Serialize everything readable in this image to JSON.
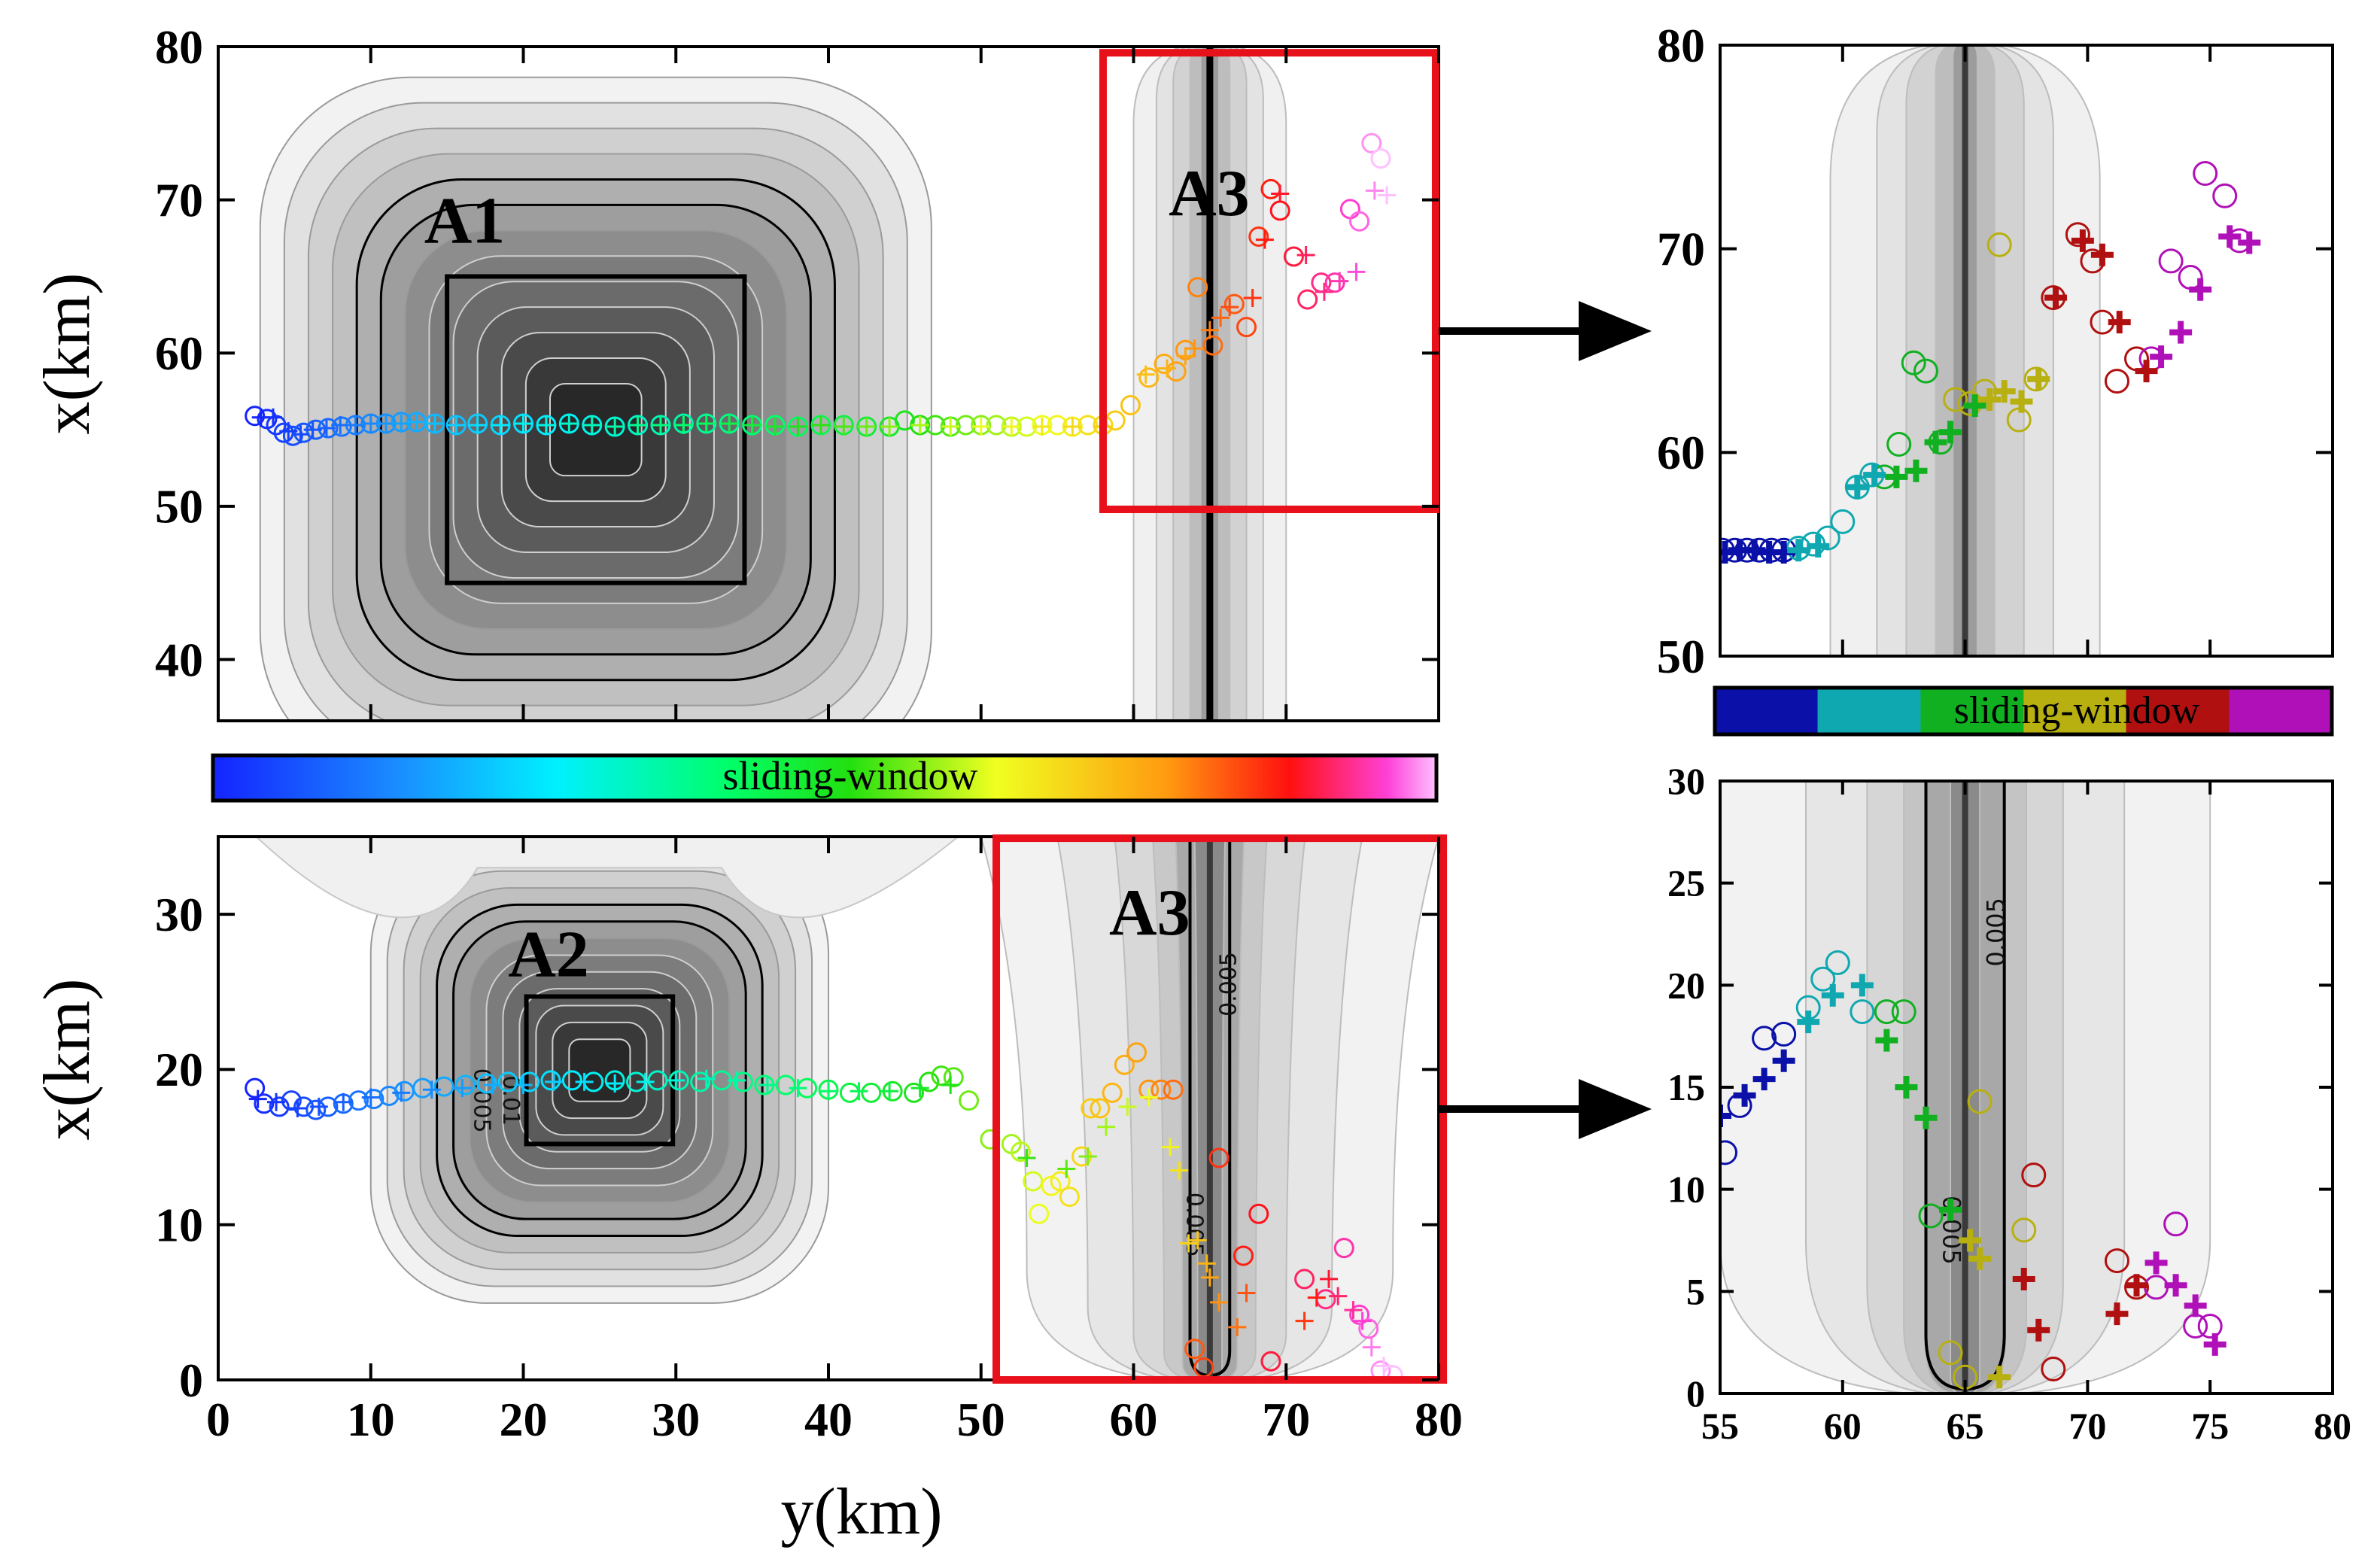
{
  "figure": {
    "colorbar_main_label": "sliding-window",
    "colorbar_side_label": "sliding-window",
    "ylabel_top": "x(km)",
    "ylabel_bottom": "x(km)",
    "xlabel_bottom": "y(km)",
    "colors": {
      "frame": "#000000",
      "zoom_box": "#e8101a",
      "fault": "#000000",
      "contour_light": "#f1f1f1",
      "contour_dark": "#222222"
    }
  },
  "chart_data": [
    {
      "id": "top-left",
      "type": "scatter",
      "title": "",
      "xlabel": "",
      "ylabel": "x(km)",
      "xlim": [
        0,
        80
      ],
      "ylim": [
        36,
        80
      ],
      "x_ticks": [],
      "y_ticks": [
        40,
        50,
        60,
        70,
        80
      ],
      "annotations": [
        {
          "text": "A1",
          "x": 13.5,
          "y": 67.2
        },
        {
          "text": "A3",
          "x": 62.3,
          "y": 69.0
        }
      ],
      "source_boxes": [
        {
          "name": "A1",
          "x0": 15,
          "x1": 34.5,
          "y0": 45,
          "y1": 65
        }
      ],
      "fault_line": {
        "y": 65,
        "from": 36,
        "to": 80
      },
      "zoom_box": {
        "x0": 58,
        "x1": 79.8,
        "y0": 49.8,
        "y1": 79.6
      },
      "series": [
        {
          "marker": "circle",
          "colorscale": "rainbow",
          "x": [
            2.4,
            3.2,
            3.8,
            4.3,
            4.9,
            5.6,
            6.4,
            7.2,
            8.1,
            9.0,
            10.0,
            11.0,
            12.0,
            13.0,
            14.2,
            15.6,
            17.0,
            18.5,
            20.0,
            21.5,
            23.0,
            24.5,
            26.0,
            27.5,
            29.0,
            30.5,
            32.0,
            33.5,
            35.0,
            36.5,
            38.0,
            39.5,
            41.0,
            42.5,
            44.0,
            45.0,
            46.0,
            47.0,
            48.0,
            49.0,
            50.0,
            51.0,
            52.0,
            53.0,
            54.0,
            55.0,
            56.0,
            57.0,
            58.0,
            58.8,
            59.8,
            61.0,
            62.0,
            62.8,
            63.4,
            64.2,
            65.2,
            66.6,
            67.4,
            68.2,
            69.0,
            69.6,
            70.5,
            71.4,
            72.3,
            73.2,
            74.2,
            74.8,
            75.6,
            76.2
          ],
          "y": [
            55.9,
            55.7,
            55.3,
            54.8,
            54.6,
            54.8,
            55.0,
            55.1,
            55.2,
            55.3,
            55.4,
            55.4,
            55.5,
            55.5,
            55.4,
            55.3,
            55.4,
            55.3,
            55.4,
            55.3,
            55.4,
            55.3,
            55.2,
            55.3,
            55.3,
            55.4,
            55.4,
            55.4,
            55.3,
            55.3,
            55.2,
            55.3,
            55.3,
            55.2,
            55.2,
            55.6,
            55.3,
            55.3,
            55.2,
            55.3,
            55.3,
            55.3,
            55.2,
            55.2,
            55.3,
            55.3,
            55.2,
            55.3,
            55.3,
            55.6,
            56.6,
            58.4,
            59.3,
            58.8,
            60.2,
            64.3,
            60.5,
            63.2,
            61.7,
            67.6,
            70.7,
            69.3,
            66.3,
            63.5,
            64.6,
            64.6,
            69.4,
            68.6,
            73.7,
            72.7
          ]
        },
        {
          "marker": "cross",
          "colorscale": "rainbow",
          "x": [
            2.8,
            3.6,
            4.6,
            5.4,
            6.2,
            7.1,
            8.0,
            9.0,
            10.0,
            11.0,
            12.0,
            13.0,
            14.2,
            15.6,
            17.0,
            18.5,
            20.0,
            21.5,
            23.0,
            24.5,
            26.0,
            27.5,
            29.0,
            30.5,
            32.0,
            33.5,
            35.0,
            36.5,
            38.0,
            39.5,
            41.0,
            42.5,
            44.0,
            46.0,
            48.0,
            50.0,
            52.0,
            54.0,
            56.0,
            58.0,
            60.8,
            62.2,
            63.4,
            64.0,
            65.0,
            65.7,
            66.3,
            67.8,
            68.6,
            69.6,
            71.3,
            72.5,
            73.5,
            74.6,
            75.8,
            76.6
          ],
          "y": [
            55.8,
            55.8,
            54.9,
            54.7,
            55.0,
            55.1,
            55.3,
            55.3,
            55.4,
            55.4,
            55.4,
            55.5,
            55.4,
            55.3,
            55.3,
            55.3,
            55.4,
            55.3,
            55.4,
            55.3,
            55.2,
            55.3,
            55.3,
            55.3,
            55.4,
            55.4,
            55.3,
            55.2,
            55.2,
            55.3,
            55.2,
            55.2,
            55.2,
            55.3,
            55.2,
            55.2,
            55.2,
            55.2,
            55.2,
            55.2,
            58.6,
            59.0,
            59.8,
            60.3,
            61.5,
            62.3,
            63.0,
            63.6,
            67.4,
            70.4,
            66.4,
            64.0,
            64.7,
            65.3,
            70.6,
            70.3
          ]
        }
      ]
    },
    {
      "id": "bottom-left",
      "type": "scatter",
      "title": "",
      "xlabel": "y(km)",
      "ylabel": "x(km)",
      "xlim": [
        0,
        80
      ],
      "ylim": [
        0,
        35
      ],
      "x_ticks": [
        0,
        10,
        20,
        30,
        40,
        50,
        60,
        70,
        80
      ],
      "y_ticks": [
        0,
        10,
        20,
        30
      ],
      "annotations": [
        {
          "text": "A2",
          "x": 19.0,
          "y": 26.0
        },
        {
          "text": "A3",
          "x": 58.4,
          "y": 28.7
        }
      ],
      "contour_labels": [
        {
          "text": "0.005",
          "x": 16.8,
          "y": 18.0,
          "angle": 90
        },
        {
          "text": "0.01",
          "x": 18.7,
          "y": 18.0,
          "angle": 90
        },
        {
          "text": "0.005",
          "x": 66.7,
          "y": 25.5,
          "angle": -90
        },
        {
          "text": "0.005",
          "x": 63.5,
          "y": 10.0,
          "angle": 90
        }
      ],
      "source_boxes": [
        {
          "name": "A2",
          "x0": 20.2,
          "x1": 29.8,
          "y0": 15.2,
          "y1": 24.7
        }
      ],
      "fault_line": {
        "y": 65,
        "from": 0,
        "to": 35
      },
      "zoom_box": {
        "x0": 51,
        "x1": 80.3,
        "y0": 0,
        "y1": 34.9
      },
      "series": [
        {
          "marker": "circle",
          "colorscale": "rainbow",
          "x": [
            2.4,
            3.0,
            4.0,
            4.8,
            5.6,
            6.4,
            7.2,
            8.2,
            9.2,
            10.2,
            11.2,
            12.2,
            13.4,
            14.8,
            16.2,
            17.6,
            19.0,
            20.4,
            21.8,
            23.2,
            24.6,
            26.0,
            27.4,
            28.8,
            30.2,
            31.6,
            33.0,
            34.4,
            35.8,
            37.2,
            38.6,
            40.0,
            41.4,
            42.8,
            44.2,
            45.6,
            46.6,
            47.4,
            48.2,
            49.2,
            50.6,
            52.0,
            52.6,
            53.4,
            53.8,
            54.6,
            55.2,
            55.8,
            56.6,
            57.2,
            57.8,
            58.6,
            59.4,
            60.2,
            61.0,
            61.8,
            62.6,
            64.0,
            64.6,
            65.6,
            67.2,
            68.2,
            69.0,
            71.2,
            72.6,
            73.8,
            74.8,
            75.4,
            76.2,
            77.0
          ],
          "y": [
            18.8,
            17.8,
            17.6,
            18.0,
            17.6,
            17.4,
            17.6,
            17.8,
            18.0,
            18.1,
            18.3,
            18.6,
            18.8,
            18.9,
            19.0,
            19.1,
            19.2,
            19.2,
            19.3,
            19.3,
            19.2,
            19.3,
            19.2,
            19.3,
            19.3,
            19.2,
            19.3,
            19.2,
            19.0,
            19.0,
            18.8,
            18.7,
            18.5,
            18.5,
            18.6,
            18.5,
            19.2,
            19.6,
            19.5,
            18.0,
            15.5,
            15.2,
            14.7,
            12.8,
            10.7,
            12.5,
            12.8,
            11.8,
            14.4,
            17.5,
            17.5,
            18.5,
            20.3,
            21.1,
            18.7,
            18.7,
            18.7,
            2.0,
            0.8,
            14.3,
            8.0,
            10.7,
            1.2,
            6.5,
            5.2,
            8.5,
            4.2,
            3.3,
            0.6,
            0.3
          ]
        },
        {
          "marker": "cross",
          "colorscale": "rainbow",
          "x": [
            2.6,
            3.8,
            5.2,
            6.6,
            8.2,
            10.0,
            12.0,
            14.0,
            16.0,
            18.0,
            20.0,
            22.0,
            24.0,
            26.0,
            28.0,
            30.0,
            32.0,
            34.0,
            36.0,
            38.0,
            40.0,
            42.0,
            44.0,
            46.0,
            48.0,
            53.0,
            55.6,
            57.0,
            58.2,
            59.6,
            61.0,
            62.4,
            63.0,
            63.6,
            64.2,
            64.8,
            65.0,
            65.6,
            66.8,
            67.4,
            71.2,
            72.0,
            72.8,
            73.4,
            74.4,
            75.0,
            75.6,
            76.4
          ],
          "y": [
            18.1,
            17.9,
            17.5,
            17.6,
            17.9,
            18.2,
            18.5,
            18.7,
            18.8,
            19.0,
            19.0,
            19.2,
            19.2,
            19.1,
            19.2,
            19.3,
            19.4,
            19.3,
            19.0,
            18.8,
            18.6,
            18.6,
            18.6,
            18.8,
            19.0,
            14.3,
            13.6,
            14.4,
            16.3,
            17.6,
            18.2,
            15.0,
            13.5,
            8.8,
            9.0,
            7.5,
            6.6,
            5.0,
            3.4,
            5.6,
            3.8,
            5.3,
            6.5,
            5.4,
            4.5,
            3.8,
            2.1,
            0.9
          ]
        }
      ]
    },
    {
      "id": "top-right",
      "type": "scatter",
      "title": "",
      "xlabel": "",
      "ylabel": "",
      "xlim": [
        55,
        80
      ],
      "ylim": [
        50,
        80
      ],
      "x_ticks": [],
      "y_ticks": [
        50,
        60,
        70,
        80
      ],
      "fault_line": {
        "y": 65,
        "from": 50,
        "to": 80
      },
      "series": [
        {
          "marker": "circle",
          "colorscale": "discrete",
          "x": [
            55.1,
            55.6,
            56.1,
            56.6,
            57.1,
            57.6,
            58.2,
            58.8,
            59.4,
            60.0,
            60.6,
            61.2,
            61.7,
            62.3,
            62.9,
            63.4,
            64.0,
            64.6,
            65.2,
            65.8,
            66.4,
            67.2,
            67.9,
            68.6,
            69.6,
            70.2,
            70.6,
            71.2,
            72.0,
            72.6,
            73.4,
            74.2,
            74.8,
            75.6,
            76.2
          ],
          "y": [
            55.2,
            55.2,
            55.2,
            55.2,
            55.2,
            55.2,
            55.3,
            55.5,
            55.8,
            56.6,
            58.3,
            58.9,
            58.8,
            60.4,
            64.4,
            64.0,
            60.5,
            62.6,
            62.4,
            63.0,
            70.2,
            61.6,
            63.6,
            67.6,
            70.7,
            69.4,
            66.4,
            63.5,
            64.6,
            64.6,
            69.4,
            68.6,
            73.7,
            72.6,
            70.4
          ]
        },
        {
          "marker": "cross",
          "colorscale": "discrete",
          "x": [
            55.2,
            55.8,
            56.4,
            57.0,
            57.6,
            58.2,
            59.0,
            60.6,
            61.3,
            62.2,
            63.0,
            63.8,
            64.4,
            65.4,
            66.0,
            66.6,
            67.3,
            68.0,
            68.7,
            69.8,
            70.6,
            71.3,
            72.4,
            73.0,
            73.8,
            74.6,
            75.8,
            76.6
          ],
          "y": [
            55.1,
            55.2,
            55.2,
            55.1,
            55.1,
            55.2,
            55.4,
            58.3,
            58.9,
            58.8,
            59.1,
            60.5,
            61.0,
            62.3,
            62.6,
            63.0,
            62.5,
            63.6,
            67.6,
            70.4,
            69.7,
            66.4,
            64.0,
            64.7,
            65.9,
            68.0,
            70.6,
            70.3
          ]
        }
      ]
    },
    {
      "id": "bottom-right",
      "type": "scatter",
      "title": "",
      "xlabel": "",
      "ylabel": "",
      "xlim": [
        55,
        80
      ],
      "ylim": [
        0,
        30
      ],
      "x_ticks": [
        55,
        60,
        65,
        70,
        75,
        80
      ],
      "y_ticks": [
        0,
        5,
        10,
        15,
        20,
        25,
        30
      ],
      "contour_labels": [
        {
          "text": "0.005",
          "x": 66.6,
          "y": 22.6,
          "angle": -90
        },
        {
          "text": "0.005",
          "x": 64.1,
          "y": 8.0,
          "angle": 90
        }
      ],
      "fault_line": {
        "y": 65,
        "from": 0,
        "to": 30
      },
      "series": [
        {
          "marker": "circle",
          "colorscale": "discrete",
          "x": [
            55.2,
            55.8,
            56.8,
            57.6,
            58.6,
            59.2,
            59.8,
            60.8,
            61.8,
            62.5,
            63.6,
            64.4,
            65.0,
            65.6,
            67.4,
            67.8,
            68.6,
            71.2,
            72.0,
            72.8,
            73.6,
            74.4,
            75.0
          ],
          "y": [
            11.8,
            14.1,
            17.4,
            17.6,
            18.9,
            20.3,
            21.1,
            18.7,
            18.7,
            18.7,
            8.7,
            2.0,
            0.8,
            14.3,
            8.0,
            10.7,
            1.2,
            6.5,
            5.2,
            5.2,
            8.3,
            3.3,
            3.3
          ]
        },
        {
          "marker": "cross",
          "colorscale": "discrete",
          "x": [
            55.0,
            56.0,
            56.8,
            57.6,
            58.6,
            59.6,
            60.8,
            61.8,
            62.6,
            63.4,
            64.4,
            65.2,
            65.6,
            66.4,
            67.4,
            68.0,
            71.2,
            72.0,
            72.8,
            73.6,
            74.4,
            75.2
          ],
          "y": [
            13.6,
            14.6,
            15.4,
            16.3,
            18.2,
            19.5,
            20.0,
            17.3,
            15.0,
            13.5,
            9.0,
            7.5,
            6.6,
            0.8,
            5.6,
            3.1,
            3.9,
            5.3,
            6.4,
            5.3,
            4.3,
            2.4
          ]
        }
      ]
    }
  ]
}
